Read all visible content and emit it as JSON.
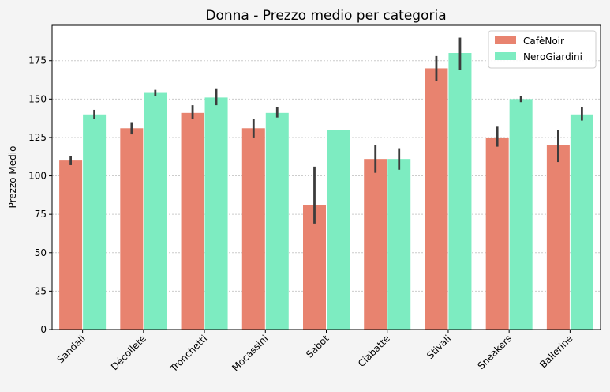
{
  "chart_data": {
    "type": "bar",
    "title": "Donna - Prezzo medio per categoria",
    "xlabel": "",
    "ylabel": "Prezzo Medio",
    "ylim": [
      0,
      198
    ],
    "yticks": [
      0,
      25,
      50,
      75,
      100,
      125,
      150,
      175
    ],
    "grid": "horizontal-dotted",
    "legend_position": "top-right",
    "categories": [
      "Sandali",
      "Décolleté",
      "Tronchetti",
      "Mocassini",
      "Sabot",
      "Ciabatte",
      "Stivali",
      "Sneakers",
      "Ballerine"
    ],
    "series": [
      {
        "name": "CafèNoir",
        "color": "#e8836f",
        "values": [
          110,
          131,
          141,
          131,
          81,
          111,
          170,
          125,
          120
        ],
        "error_low": [
          107,
          127,
          137,
          125,
          69,
          102,
          162,
          119,
          109
        ],
        "error_high": [
          113,
          135,
          146,
          137,
          106,
          120,
          178,
          132,
          130
        ]
      },
      {
        "name": "NeroGiardini",
        "color": "#7decc1",
        "values": [
          140,
          154,
          151,
          141,
          130,
          111,
          180,
          150,
          140
        ],
        "error_low": [
          137,
          152,
          146,
          138,
          130,
          104,
          169,
          148,
          136
        ],
        "error_high": [
          143,
          156,
          157,
          145,
          130,
          118,
          190,
          152,
          145
        ]
      }
    ]
  }
}
